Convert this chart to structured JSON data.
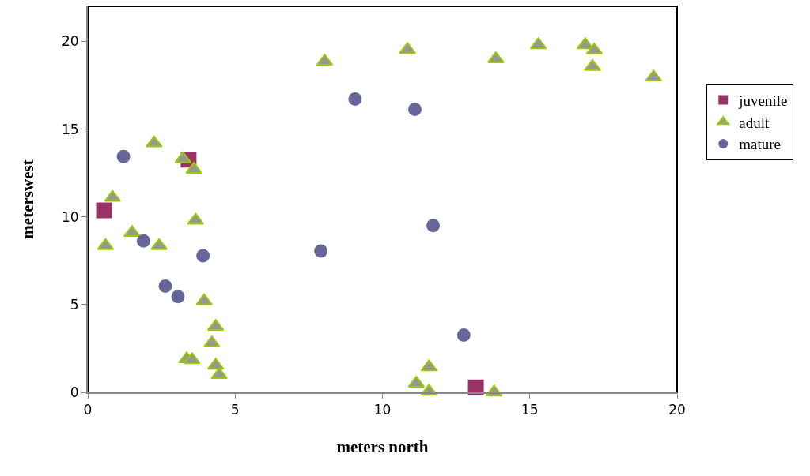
{
  "chart_data": {
    "type": "scatter",
    "xlabel": "meters north",
    "ylabel": "meterswest",
    "xlim": [
      0,
      20
    ],
    "xticks": [
      0,
      5,
      10,
      15,
      20
    ],
    "ylim": [
      0,
      22
    ],
    "yticks": [
      0,
      5,
      10,
      15,
      20
    ],
    "grid": false,
    "legend": "right",
    "series": [
      {
        "name": "juvenile",
        "color": "#993366",
        "marker": "square",
        "x": [
          0.55,
          3.42,
          13.17
        ],
        "values": [
          10.37,
          13.26,
          0.28
        ]
      },
      {
        "name": "adult",
        "color": "#969696",
        "marker": "triangle",
        "x": [
          2.25,
          3.23,
          3.6,
          0.84,
          3.66,
          1.5,
          0.6,
          2.42,
          3.95,
          4.34,
          4.21,
          3.36,
          3.54,
          4.34,
          4.46,
          8.04,
          10.85,
          13.85,
          15.29,
          16.88,
          17.19,
          17.13,
          19.2,
          11.58,
          11.15,
          11.58,
          13.79
        ],
        "values": [
          14.2,
          13.3,
          12.7,
          11.1,
          9.8,
          9.1,
          8.35,
          8.35,
          5.2,
          3.74,
          2.8,
          1.9,
          1.85,
          1.53,
          1.0,
          18.86,
          19.53,
          19.0,
          19.8,
          19.8,
          19.5,
          18.56,
          17.96,
          1.44,
          0.51,
          0.05,
          0.0
        ]
      },
      {
        "name": "mature",
        "color": "#666699",
        "marker": "circle",
        "x": [
          1.21,
          1.89,
          3.91,
          2.63,
          3.06,
          9.07,
          11.1,
          7.91,
          11.72,
          12.76
        ],
        "values": [
          13.44,
          8.63,
          7.78,
          6.05,
          5.46,
          16.71,
          16.13,
          8.05,
          9.5,
          3.26
        ]
      }
    ]
  }
}
